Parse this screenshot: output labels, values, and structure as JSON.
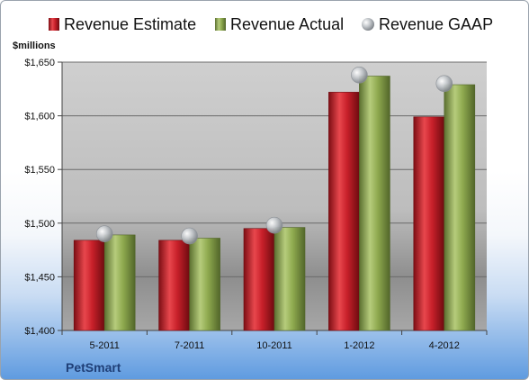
{
  "chart_data": {
    "type": "bar",
    "company": "PetSmart",
    "unit_label": "$millions",
    "categories": [
      "5-2011",
      "7-2011",
      "10-2011",
      "1-2012",
      "4-2012"
    ],
    "series": [
      {
        "name": "Revenue Estimate",
        "kind": "bar",
        "color": "#c8202a",
        "values": [
          1484,
          1484,
          1495,
          1622,
          1599
        ]
      },
      {
        "name": "Revenue Actual",
        "kind": "bar",
        "color": "#8faa4f",
        "values": [
          1489,
          1486,
          1496,
          1637,
          1629
        ]
      },
      {
        "name": "Revenue GAAP",
        "kind": "marker",
        "color": "#c0c4c8",
        "values": [
          1490,
          1488,
          1498,
          1638,
          1630
        ]
      }
    ],
    "yticks": [
      "$1,400",
      "$1,450",
      "$1,500",
      "$1,550",
      "$1,600",
      "$1,650"
    ],
    "ylim": [
      1400,
      1650
    ],
    "grid": true,
    "legend_position": "top"
  }
}
